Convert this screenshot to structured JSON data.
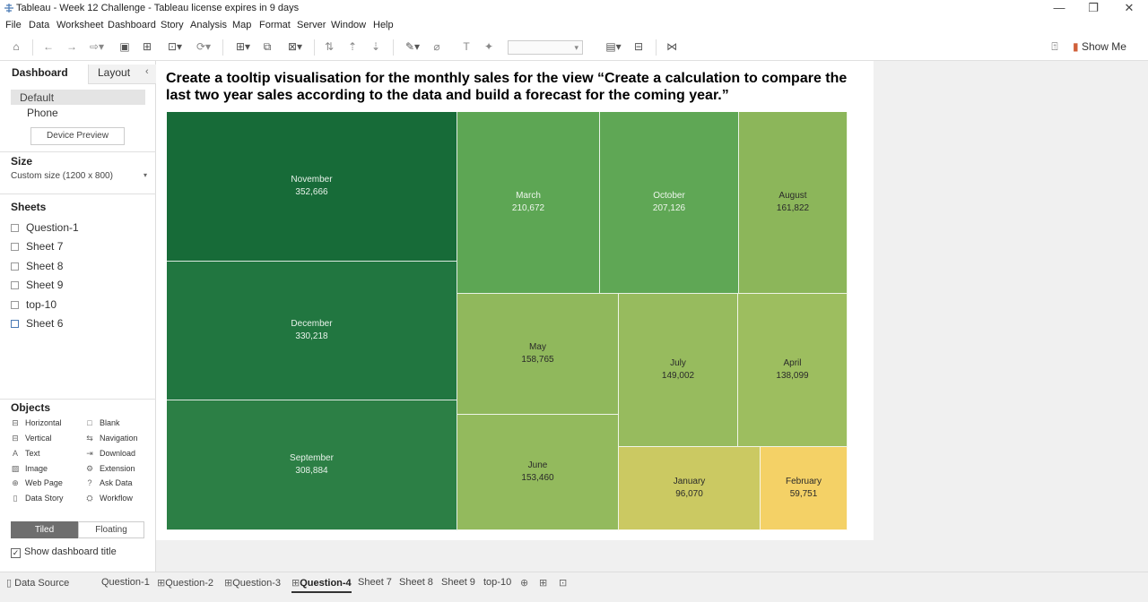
{
  "window": {
    "title": "Tableau - Week 12 Challenge - Tableau license expires in 9 days",
    "minimize": "—",
    "maximize": "❐",
    "close": "✕"
  },
  "menu": [
    "File",
    "Data",
    "Worksheet",
    "Dashboard",
    "Story",
    "Analysis",
    "Map",
    "Format",
    "Server",
    "Window",
    "Help"
  ],
  "toolbar": {
    "show_me": "Show Me"
  },
  "left_pane": {
    "tab_dashboard": "Dashboard",
    "tab_layout": "Layout",
    "collapse": "‹",
    "device_default": "Default",
    "device_phone": "Phone",
    "device_preview": "Device Preview",
    "size_header": "Size",
    "size_value": "Custom size (1200 x 800)",
    "sheets_header": "Sheets",
    "sheets": [
      "Question-1",
      "Sheet 7",
      "Sheet 8",
      "Sheet 9",
      "top-10",
      "Sheet 6"
    ],
    "objects_header": "Objects",
    "objects_left": [
      {
        "icon": "⊟",
        "label": "Horizontal"
      },
      {
        "icon": "⊟",
        "label": "Vertical"
      },
      {
        "icon": "A",
        "label": "Text"
      },
      {
        "icon": "▨",
        "label": "Image"
      },
      {
        "icon": "⊕",
        "label": "Web Page"
      },
      {
        "icon": "▯",
        "label": "Data Story"
      }
    ],
    "objects_right": [
      {
        "icon": "□",
        "label": "Blank"
      },
      {
        "icon": "⇆",
        "label": "Navigation"
      },
      {
        "icon": "⇥",
        "label": "Download"
      },
      {
        "icon": "⚙",
        "label": "Extension"
      },
      {
        "icon": "?",
        "label": "Ask Data"
      },
      {
        "icon": "⛭",
        "label": "Workflow"
      }
    ],
    "tiled": "Tiled",
    "floating": "Floating",
    "show_title_label": "Show dashboard title",
    "show_title_checked": true
  },
  "dashboard": {
    "title": "Create a tooltip visualisation for the monthly sales for the view “Create a calculation to compare the last two year sales according to the data and build a forecast for the coming year.”"
  },
  "treemap": [
    {
      "month": "November",
      "value": "352,666",
      "color": "#176b38",
      "text_color": "#e8f2ea"
    },
    {
      "month": "December",
      "value": "330,218",
      "color": "#217640",
      "text_color": "#e8f2ea"
    },
    {
      "month": "September",
      "value": "308,884",
      "color": "#2c7f45",
      "text_color": "#e8f2ea"
    },
    {
      "month": "March",
      "value": "210,672",
      "color": "#5da654",
      "text_color": "#eef6ec"
    },
    {
      "month": "October",
      "value": "207,126",
      "color": "#5fa755",
      "text_color": "#eef6ec"
    },
    {
      "month": "August",
      "value": "161,822",
      "color": "#8cb65a",
      "text_color": "#2a2a2a"
    },
    {
      "month": "May",
      "value": "158,765",
      "color": "#90b85c",
      "text_color": "#2a2a2a"
    },
    {
      "month": "June",
      "value": "153,460",
      "color": "#93ba5d",
      "text_color": "#2a2a2a"
    },
    {
      "month": "July",
      "value": "149,002",
      "color": "#97bb5e",
      "text_color": "#2a2a2a"
    },
    {
      "month": "April",
      "value": "138,099",
      "color": "#9dbe5f",
      "text_color": "#2a2a2a"
    },
    {
      "month": "January",
      "value": "96,070",
      "color": "#cbc962",
      "text_color": "#2a2a2a"
    },
    {
      "month": "February",
      "value": "59,751",
      "color": "#f4d166",
      "text_color": "#2a2a2a"
    }
  ],
  "bottom_tabs": [
    "Data Source",
    "Question-1",
    "Question-2",
    "Question-3",
    "Question-4",
    "Sheet 7",
    "Sheet 8",
    "Sheet 9",
    "top-10"
  ],
  "active_tab": "Question-4"
}
